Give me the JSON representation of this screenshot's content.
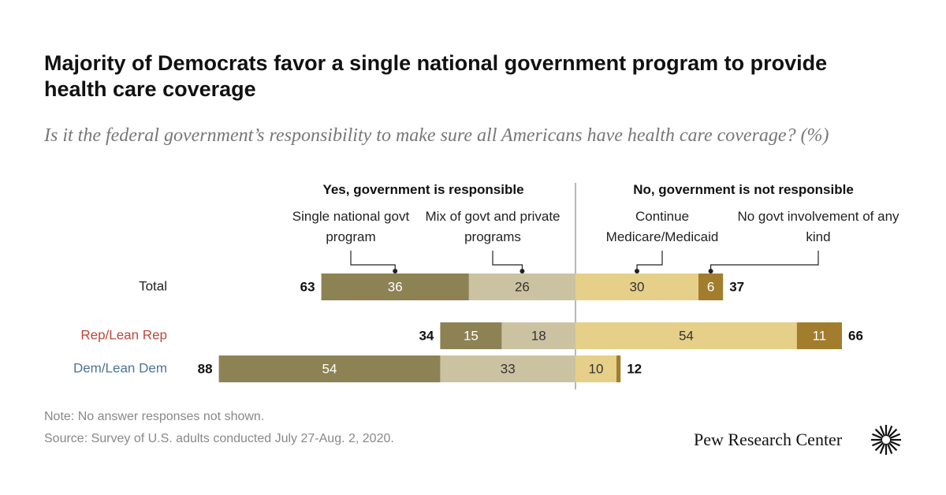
{
  "chart_data": {
    "type": "diverging_bar",
    "title": "Majority of Democrats favor a single national government program to provide health care coverage",
    "subtitle": "Is it the federal government’s responsibility to make sure all Americans have health care coverage? (%)",
    "categories": [
      "Total",
      "Rep/Lean Rep",
      "Dem/Lean Dem"
    ],
    "category_colors": [
      "#222222",
      "#c0463a",
      "#4a7596"
    ],
    "groups": [
      {
        "label": "Yes, government is responsible",
        "totals": [
          63,
          34,
          88
        ],
        "series": [
          {
            "name": "Single national govt program",
            "color": "#8c8254",
            "values": [
              36,
              15,
              54
            ]
          },
          {
            "name": "Mix of govt and private programs",
            "color": "#cbc2a2",
            "values": [
              26,
              18,
              33
            ]
          }
        ]
      },
      {
        "label": "No, government is not responsible",
        "totals": [
          37,
          66,
          12
        ],
        "series": [
          {
            "name": "Continue Medicare/Medicaid",
            "color": "#e6cf88",
            "values": [
              30,
              54,
              10
            ]
          },
          {
            "name": "No govt involvement of any kind",
            "color": "#a17d2d",
            "values": [
              6,
              11,
              1
            ],
            "value_labels": [
              "6",
              "11",
              null
            ]
          }
        ]
      }
    ],
    "note": "Note: No answer responses not shown.",
    "source": "Source: Survey of U.S. adults conducted July 27-Aug. 2, 2020.",
    "brand": "Pew Research Center"
  }
}
